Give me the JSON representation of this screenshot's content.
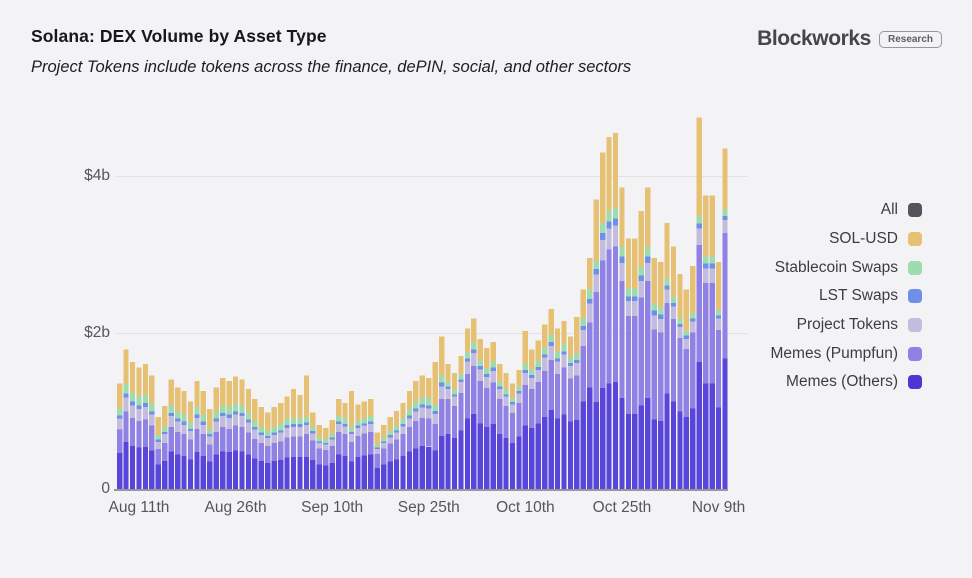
{
  "header": {
    "title": "Solana: DEX Volume by Asset Type",
    "subtitle": "Project Tokens include tokens across the finance, dePIN, social, and other sectors",
    "brand": "Blockworks",
    "brand_badge": "Research"
  },
  "chart_data": {
    "type": "bar",
    "stacked": true,
    "title": "Solana: DEX Volume by Asset Type",
    "subtitle": "Project Tokens include tokens across the finance, dePIN, social, and other sectors",
    "unit": "$b",
    "ylim": [
      0,
      5
    ],
    "grid": "horizontal",
    "legend_position": "right",
    "yticks": {
      "values": [
        0,
        2,
        4
      ],
      "labels": [
        "0",
        "$2b",
        "$4b"
      ]
    },
    "xticks": {
      "indices": [
        3,
        18,
        33,
        48,
        63,
        78,
        93
      ],
      "labels": [
        "Aug 11th",
        "Aug 26th",
        "Sep 10th",
        "Sep 25th",
        "Oct 10th",
        "Oct 25th",
        "Nov 9th"
      ]
    },
    "categories": [
      "Aug 8",
      "Aug 9",
      "Aug 10",
      "Aug 11",
      "Aug 12",
      "Aug 13",
      "Aug 14",
      "Aug 15",
      "Aug 16",
      "Aug 17",
      "Aug 18",
      "Aug 19",
      "Aug 20",
      "Aug 21",
      "Aug 22",
      "Aug 23",
      "Aug 24",
      "Aug 25",
      "Aug 26",
      "Aug 27",
      "Aug 28",
      "Aug 29",
      "Aug 30",
      "Aug 31",
      "Sep 1",
      "Sep 2",
      "Sep 3",
      "Sep 4",
      "Sep 5",
      "Sep 6",
      "Sep 7",
      "Sep 8",
      "Sep 9",
      "Sep 10",
      "Sep 11",
      "Sep 12",
      "Sep 13",
      "Sep 14",
      "Sep 15",
      "Sep 16",
      "Sep 17",
      "Sep 18",
      "Sep 19",
      "Sep 20",
      "Sep 21",
      "Sep 22",
      "Sep 23",
      "Sep 24",
      "Sep 25",
      "Sep 26",
      "Sep 27",
      "Sep 28",
      "Sep 29",
      "Sep 30",
      "Oct 1",
      "Oct 2",
      "Oct 3",
      "Oct 4",
      "Oct 5",
      "Oct 6",
      "Oct 7",
      "Oct 8",
      "Oct 9",
      "Oct 10",
      "Oct 11",
      "Oct 12",
      "Oct 13",
      "Oct 14",
      "Oct 15",
      "Oct 16",
      "Oct 17",
      "Oct 18",
      "Oct 19",
      "Oct 20",
      "Oct 21",
      "Oct 22",
      "Oct 23",
      "Oct 24",
      "Oct 25",
      "Oct 26",
      "Oct 27",
      "Oct 28",
      "Oct 29",
      "Oct 30",
      "Oct 31",
      "Nov 1",
      "Nov 2",
      "Nov 3",
      "Nov 4",
      "Nov 5",
      "Nov 6",
      "Nov 7",
      "Nov 8",
      "Nov 9",
      "Nov 10"
    ],
    "series": [
      {
        "name": "Memes (Others)",
        "color": "#5845d9",
        "values": [
          0.46,
          0.6,
          0.55,
          0.53,
          0.54,
          0.49,
          0.31,
          0.36,
          0.48,
          0.44,
          0.42,
          0.38,
          0.47,
          0.42,
          0.35,
          0.44,
          0.48,
          0.47,
          0.49,
          0.48,
          0.44,
          0.39,
          0.36,
          0.33,
          0.36,
          0.37,
          0.4,
          0.41,
          0.41,
          0.41,
          0.37,
          0.31,
          0.3,
          0.33,
          0.44,
          0.42,
          0.35,
          0.41,
          0.43,
          0.44,
          0.27,
          0.31,
          0.35,
          0.38,
          0.42,
          0.48,
          0.52,
          0.55,
          0.54,
          0.49,
          0.68,
          0.7,
          0.65,
          0.75,
          0.9,
          0.96,
          0.84,
          0.79,
          0.83,
          0.7,
          0.65,
          0.59,
          0.67,
          0.81,
          0.78,
          0.84,
          0.92,
          1.01,
          0.9,
          0.95,
          0.86,
          0.88,
          1.12,
          1.3,
          1.11,
          1.29,
          1.35,
          1.37,
          1.16,
          0.96,
          0.96,
          1.07,
          1.16,
          0.89,
          0.87,
          1.22,
          1.12,
          0.99,
          0.92,
          1.03,
          1.62,
          1.35,
          1.35,
          1.04,
          1.67
        ]
      },
      {
        "name": "Memes (Pumpfun)",
        "color": "#8f82e4",
        "values": [
          0.3,
          0.39,
          0.36,
          0.34,
          0.35,
          0.32,
          0.2,
          0.23,
          0.31,
          0.29,
          0.28,
          0.25,
          0.3,
          0.28,
          0.22,
          0.29,
          0.31,
          0.3,
          0.32,
          0.31,
          0.28,
          0.25,
          0.23,
          0.22,
          0.23,
          0.24,
          0.26,
          0.26,
          0.26,
          0.29,
          0.25,
          0.21,
          0.2,
          0.22,
          0.29,
          0.28,
          0.25,
          0.27,
          0.28,
          0.29,
          0.18,
          0.21,
          0.23,
          0.25,
          0.28,
          0.31,
          0.35,
          0.36,
          0.36,
          0.34,
          0.47,
          0.45,
          0.41,
          0.48,
          0.57,
          0.61,
          0.54,
          0.5,
          0.53,
          0.45,
          0.41,
          0.38,
          0.43,
          0.52,
          0.5,
          0.53,
          0.59,
          0.64,
          0.57,
          0.6,
          0.55,
          0.57,
          0.71,
          0.83,
          1.41,
          1.63,
          1.71,
          1.73,
          1.5,
          1.25,
          1.25,
          1.38,
          1.5,
          1.15,
          1.13,
          1.16,
          1.05,
          0.94,
          0.87,
          0.97,
          1.5,
          1.28,
          1.28,
          0.99,
          1.6
        ]
      },
      {
        "name": "Project Tokens",
        "color": "#c3bcdf",
        "values": [
          0.14,
          0.18,
          0.16,
          0.15,
          0.16,
          0.14,
          0.09,
          0.11,
          0.14,
          0.13,
          0.12,
          0.11,
          0.14,
          0.12,
          0.1,
          0.13,
          0.14,
          0.14,
          0.14,
          0.14,
          0.13,
          0.12,
          0.1,
          0.1,
          0.1,
          0.11,
          0.12,
          0.12,
          0.12,
          0.12,
          0.09,
          0.07,
          0.07,
          0.08,
          0.1,
          0.1,
          0.1,
          0.1,
          0.1,
          0.1,
          0.06,
          0.07,
          0.08,
          0.09,
          0.1,
          0.11,
          0.12,
          0.13,
          0.13,
          0.13,
          0.16,
          0.13,
          0.12,
          0.14,
          0.16,
          0.17,
          0.15,
          0.14,
          0.15,
          0.13,
          0.12,
          0.11,
          0.12,
          0.15,
          0.14,
          0.15,
          0.17,
          0.18,
          0.16,
          0.17,
          0.16,
          0.16,
          0.2,
          0.24,
          0.22,
          0.26,
          0.27,
          0.27,
          0.23,
          0.19,
          0.19,
          0.21,
          0.23,
          0.18,
          0.17,
          0.17,
          0.16,
          0.14,
          0.13,
          0.14,
          0.21,
          0.19,
          0.19,
          0.15,
          0.17
        ]
      },
      {
        "name": "LST Swaps",
        "color": "#6e90e8",
        "values": [
          0.04,
          0.05,
          0.05,
          0.05,
          0.05,
          0.04,
          0.03,
          0.03,
          0.04,
          0.04,
          0.04,
          0.03,
          0.04,
          0.04,
          0.03,
          0.04,
          0.04,
          0.04,
          0.04,
          0.04,
          0.04,
          0.03,
          0.03,
          0.03,
          0.03,
          0.03,
          0.04,
          0.04,
          0.04,
          0.03,
          0.03,
          0.02,
          0.02,
          0.03,
          0.03,
          0.03,
          0.03,
          0.03,
          0.03,
          0.03,
          0.02,
          0.02,
          0.03,
          0.03,
          0.03,
          0.04,
          0.04,
          0.04,
          0.04,
          0.04,
          0.05,
          0.03,
          0.03,
          0.03,
          0.04,
          0.04,
          0.04,
          0.04,
          0.04,
          0.03,
          0.03,
          0.03,
          0.03,
          0.04,
          0.04,
          0.04,
          0.04,
          0.05,
          0.04,
          0.04,
          0.04,
          0.04,
          0.05,
          0.06,
          0.07,
          0.09,
          0.09,
          0.09,
          0.08,
          0.06,
          0.06,
          0.07,
          0.08,
          0.06,
          0.06,
          0.05,
          0.05,
          0.04,
          0.04,
          0.04,
          0.06,
          0.06,
          0.06,
          0.04,
          0.05
        ]
      },
      {
        "name": "Stablecoin Swaps",
        "color": "#9edcb0",
        "values": [
          0.09,
          0.12,
          0.11,
          0.11,
          0.11,
          0.1,
          0.06,
          0.07,
          0.1,
          0.09,
          0.09,
          0.08,
          0.1,
          0.09,
          0.07,
          0.09,
          0.1,
          0.1,
          0.1,
          0.1,
          0.09,
          0.08,
          0.07,
          0.07,
          0.07,
          0.08,
          0.08,
          0.08,
          0.08,
          0.07,
          0.06,
          0.05,
          0.05,
          0.05,
          0.07,
          0.07,
          0.06,
          0.06,
          0.07,
          0.07,
          0.04,
          0.05,
          0.06,
          0.06,
          0.07,
          0.08,
          0.08,
          0.09,
          0.09,
          0.08,
          0.1,
          0.06,
          0.06,
          0.07,
          0.08,
          0.09,
          0.08,
          0.07,
          0.08,
          0.06,
          0.06,
          0.05,
          0.06,
          0.08,
          0.07,
          0.08,
          0.08,
          0.09,
          0.08,
          0.09,
          0.08,
          0.08,
          0.1,
          0.12,
          0.11,
          0.13,
          0.14,
          0.14,
          0.12,
          0.1,
          0.1,
          0.11,
          0.12,
          0.09,
          0.09,
          0.09,
          0.08,
          0.07,
          0.06,
          0.07,
          0.1,
          0.09,
          0.09,
          0.07,
          0.08
        ]
      },
      {
        "name": "SOL-USD",
        "color": "#e6c173",
        "values": [
          0.32,
          0.44,
          0.39,
          0.37,
          0.39,
          0.36,
          0.23,
          0.26,
          0.33,
          0.31,
          0.3,
          0.27,
          0.33,
          0.3,
          0.25,
          0.31,
          0.35,
          0.33,
          0.35,
          0.33,
          0.3,
          0.28,
          0.26,
          0.23,
          0.26,
          0.27,
          0.28,
          0.37,
          0.29,
          0.53,
          0.18,
          0.16,
          0.14,
          0.17,
          0.22,
          0.2,
          0.46,
          0.21,
          0.21,
          0.22,
          0.15,
          0.16,
          0.17,
          0.19,
          0.2,
          0.23,
          0.27,
          0.28,
          0.26,
          0.54,
          0.49,
          0.23,
          0.21,
          0.23,
          0.3,
          0.31,
          0.27,
          0.26,
          0.25,
          0.23,
          0.21,
          0.19,
          0.21,
          0.42,
          0.25,
          0.26,
          0.3,
          0.33,
          0.3,
          0.3,
          0.26,
          0.47,
          0.37,
          0.4,
          0.78,
          0.9,
          0.94,
          0.95,
          0.76,
          0.64,
          0.64,
          0.71,
          0.76,
          0.58,
          0.58,
          0.71,
          0.64,
          0.57,
          0.53,
          0.6,
          1.26,
          0.78,
          0.78,
          0.61,
          0.78
        ]
      }
    ],
    "legend": [
      {
        "label": "All",
        "color": "#54545c"
      },
      {
        "label": "SOL-USD",
        "color": "#e6c173"
      },
      {
        "label": "Stablecoin Swaps",
        "color": "#9edcb0"
      },
      {
        "label": "LST Swaps",
        "color": "#6e90e8"
      },
      {
        "label": "Project Tokens",
        "color": "#c3bcdf"
      },
      {
        "label": "Memes (Pumpfun)",
        "color": "#8f82e4"
      },
      {
        "label": "Memes (Others)",
        "color": "#4c36d4"
      }
    ]
  }
}
